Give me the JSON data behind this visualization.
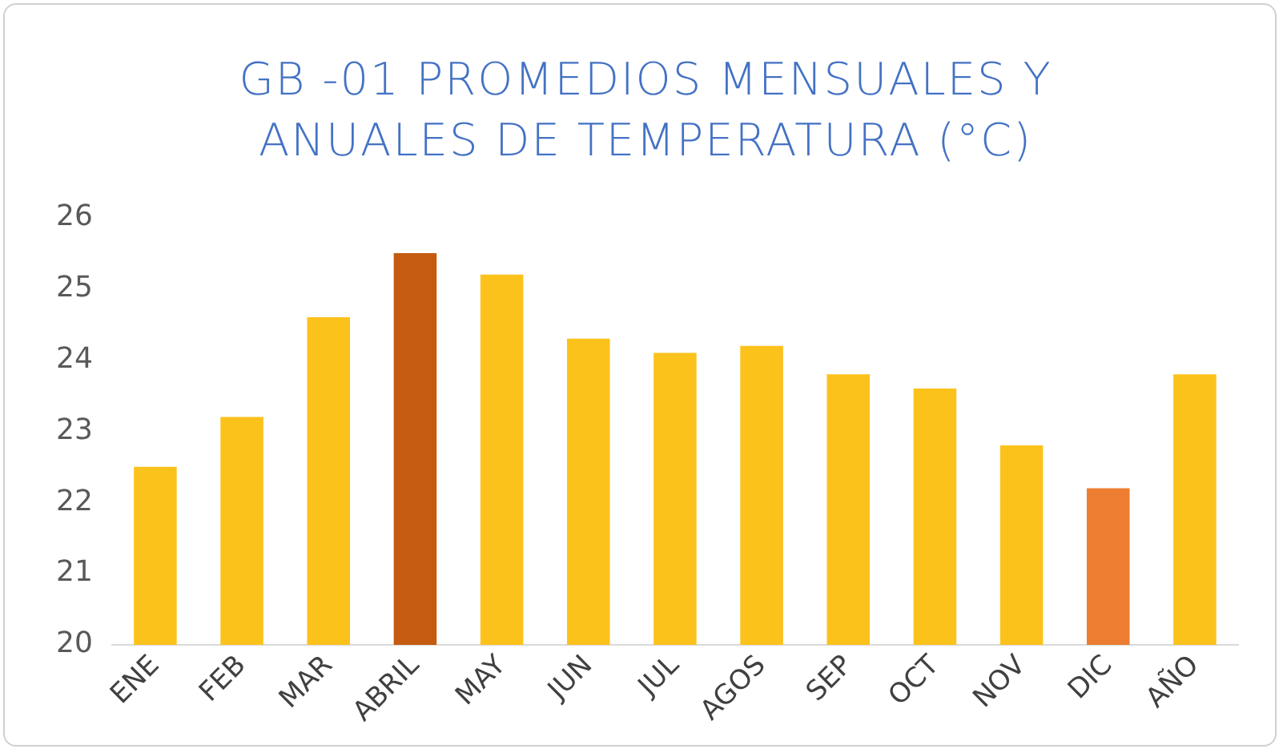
{
  "chart_data": {
    "type": "bar",
    "title": "GB -01 PROMEDIOS MENSUALES Y ANUALES DE TEMPERATURA (°C)",
    "categories": [
      "ENE",
      "FEB",
      "MAR",
      "ABRIL",
      "MAY",
      "JUN",
      "JUL",
      "AGOS",
      "SEP",
      "OCT",
      "NOV",
      "DIC",
      "AÑO"
    ],
    "values": [
      22.5,
      23.2,
      24.6,
      25.5,
      25.2,
      24.3,
      24.1,
      24.2,
      23.8,
      23.6,
      22.8,
      22.2,
      23.8
    ],
    "colors": [
      "#fcc21c",
      "#fcc21c",
      "#fcc21c",
      "#c55a11",
      "#fcc21c",
      "#fcc21c",
      "#fcc21c",
      "#fcc21c",
      "#fcc21c",
      "#fcc21c",
      "#fcc21c",
      "#ed7d31",
      "#fcc21c"
    ],
    "ylim": [
      20,
      26
    ],
    "yticks": [
      20,
      21,
      22,
      23,
      24,
      25,
      26
    ],
    "grid": false,
    "legend": false
  }
}
